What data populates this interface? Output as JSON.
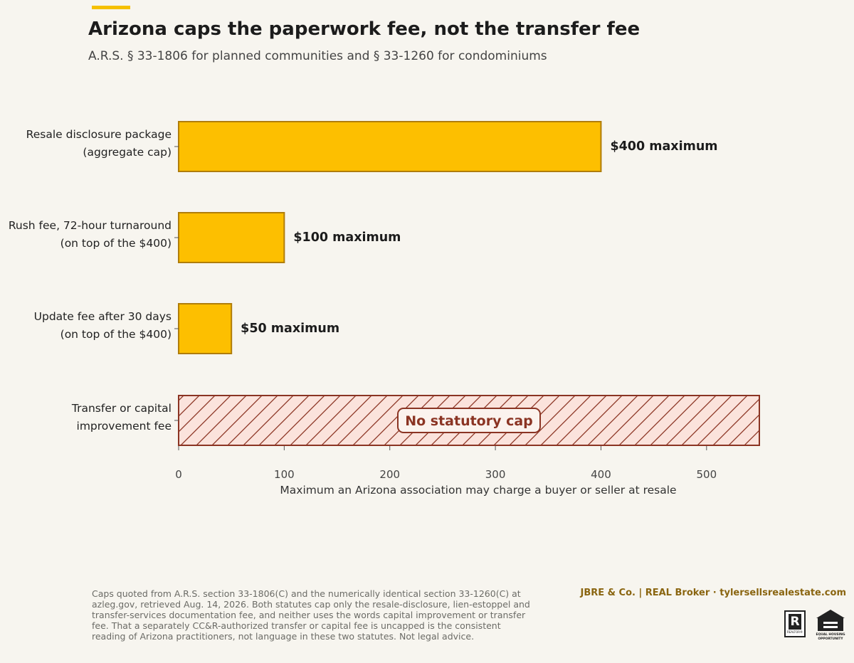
{
  "header": {
    "title": "Arizona caps the paperwork fee, not the transfer fee",
    "subtitle": "A.R.S. § 33-1806 for planned communities and § 33-1260 for condominiums"
  },
  "colors": {
    "accent": "#f5c000",
    "capped_bar_fill": "#fdbf00",
    "capped_bar_stroke": "#b07d0a",
    "uncapped_fill": "#fbe3dc",
    "uncapped_stroke": "#8b3423",
    "background": "#f7f5ef"
  },
  "chart_data": {
    "type": "bar",
    "orientation": "horizontal",
    "categories": [
      [
        "Resale disclosure package",
        "(aggregate cap)"
      ],
      [
        "Rush fee, 72-hour turnaround",
        "(on top of the $400)"
      ],
      [
        "Update fee after 30 days",
        "(on top of the $400)"
      ],
      [
        "Transfer or capital",
        "improvement fee"
      ]
    ],
    "values": [
      400,
      100,
      50,
      null
    ],
    "data_labels": [
      "$400 maximum",
      "$100 maximum",
      "$50 maximum",
      "No statutory cap"
    ],
    "uncapped_index": 3,
    "xlabel": "Maximum an Arizona association may charge a buyer or seller at resale",
    "ylabel": "",
    "xlim": [
      0,
      550
    ],
    "xticks": [
      0,
      100,
      200,
      300,
      400,
      500
    ],
    "grid": false,
    "legend": "none"
  },
  "footer": {
    "footnote": "Caps quoted from A.R.S. section 33-1806(C) and the numerically identical section 33-1260(C) at azleg.gov, retrieved Aug. 14, 2026. Both statutes cap only the resale-disclosure, lien-estoppel and transfer-services documentation fee, and neither uses the words capital improvement or transfer fee. That a separately CC&R-authorized transfer or capital fee is uncapped is the consistent reading of Arizona practitioners, not language in these two statutes. Not legal advice.",
    "brand": "JBRE & Co.  |  REAL Broker   ·   tylersellsrealestate.com",
    "realtor_logo_text": "REALTOR®",
    "eho_logo_text": "EQUAL HOUSING OPPORTUNITY"
  }
}
